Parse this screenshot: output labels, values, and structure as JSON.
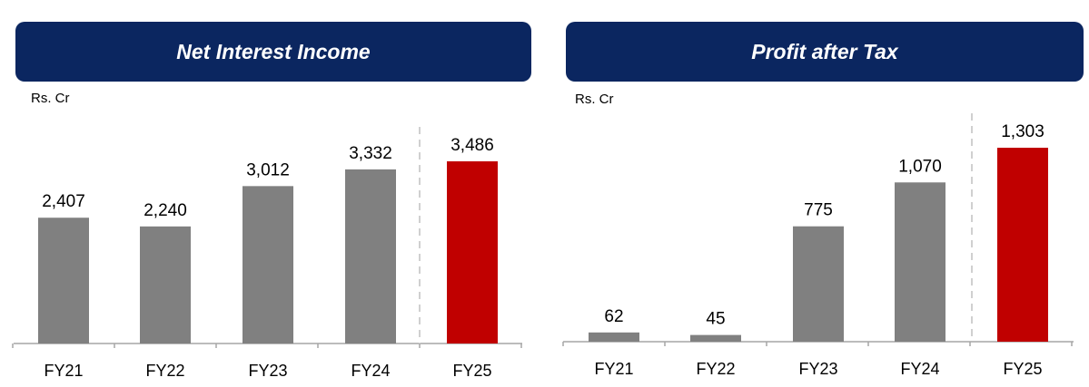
{
  "colors": {
    "banner": "#0b2660",
    "bar": "#808080",
    "highlight": "#c00000"
  },
  "chart_data": [
    {
      "type": "bar",
      "title": "Net Interest Income",
      "unit_label": "Rs. Cr",
      "categories": [
        "FY21",
        "FY22",
        "FY23",
        "FY24",
        "FY25"
      ],
      "values": [
        2407,
        2240,
        3012,
        3332,
        3486
      ],
      "value_labels": [
        "2,407",
        "2,240",
        "3,012",
        "3,332",
        "3,486"
      ],
      "highlight_index": 4,
      "ylim": [
        0,
        3486
      ],
      "grid": false,
      "separator_before": "FY25"
    },
    {
      "type": "bar",
      "title": "Profit after Tax",
      "unit_label": "Rs. Cr",
      "categories": [
        "FY21",
        "FY22",
        "FY23",
        "FY24",
        "FY25"
      ],
      "values": [
        62,
        45,
        775,
        1070,
        1303
      ],
      "value_labels": [
        "62",
        "45",
        "775",
        "1,070",
        "1,303"
      ],
      "highlight_index": 4,
      "ylim": [
        0,
        1303
      ],
      "grid": false,
      "separator_before": "FY25"
    }
  ]
}
